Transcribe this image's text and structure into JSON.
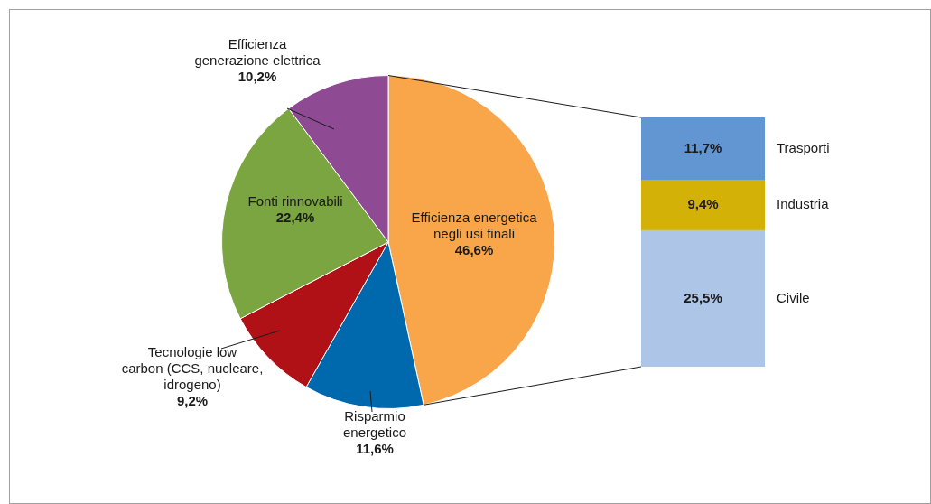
{
  "chart_data": [
    {
      "type": "pie",
      "categories": [
        "Efficienza energetica\nnegli usi finali",
        "Risparmio\nenergetico",
        "Tecnologie low\ncarbon (CCS, nucleare,\nidrogeno)",
        "Fonti rinnovabili",
        "Efficienza\ngenerazione elettrica"
      ],
      "values": [
        46.6,
        11.6,
        9.2,
        22.4,
        10.2
      ],
      "value_labels": [
        "46,6%",
        "11,6%",
        "9,2%",
        "22,4%",
        "10,2%"
      ],
      "colors": [
        "#f9a54a",
        "#0069ad",
        "#b01116",
        "#7aa540",
        "#8e4b93"
      ],
      "legend": false
    },
    {
      "type": "bar",
      "stacked": true,
      "categories": [
        null
      ],
      "legend": false,
      "tick_labels": false,
      "series": [
        {
          "name": "Civile",
          "color": "#adc5e7",
          "values": [
            25.5
          ],
          "value_labels": [
            "25,5%"
          ]
        },
        {
          "name": "Industria",
          "color": "#d4b106",
          "values": [
            9.4
          ],
          "value_labels": [
            "9,4%"
          ]
        },
        {
          "name": "Trasporti",
          "color": "#6196d3",
          "values": [
            11.7
          ],
          "value_labels": [
            "11,7%"
          ]
        }
      ]
    }
  ]
}
